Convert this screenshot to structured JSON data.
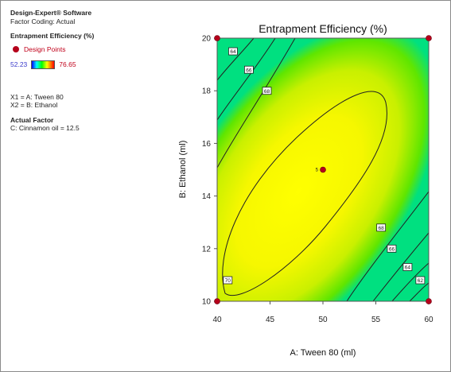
{
  "info": {
    "software": "Design-Expert® Software",
    "coding": "Factor Coding: Actual",
    "response_title": "Entrapment Efficiency (%)",
    "legend_label": "Design Points",
    "range_min": "52.23",
    "range_max": "76.65",
    "x1": "X1 = A: Tween 80",
    "x2": "X2 = B: Ethanol",
    "actual_factor_title": "Actual Factor",
    "actual_factor_value": "C: Cinnamon oil = 12.5"
  },
  "colors": {
    "low": "#00ff00",
    "mid": "#ffff00",
    "design_point": "#b5001b",
    "contour": "#222222"
  },
  "chart_data": {
    "type": "contour",
    "title": "Entrapment Efficiency (%)",
    "xlabel": "A: Tween 80 (ml)",
    "ylabel": "B: Ethanol (ml)",
    "xlim": [
      40,
      60
    ],
    "ylim": [
      10,
      20
    ],
    "x_ticks": [
      "40",
      "45",
      "50",
      "55",
      "60"
    ],
    "y_ticks": [
      "10",
      "12",
      "14",
      "16",
      "18",
      "20"
    ],
    "x_tick_values": [
      40,
      45,
      50,
      55,
      60
    ],
    "y_tick_values": [
      10,
      12,
      14,
      16,
      18,
      20
    ],
    "contour_labels": [
      {
        "text": "64",
        "x": 41.5,
        "y": 19.5
      },
      {
        "text": "66",
        "x": 43.0,
        "y": 18.8
      },
      {
        "text": "68",
        "x": 44.7,
        "y": 18.0
      },
      {
        "text": "70",
        "x": 41.0,
        "y": 10.8
      },
      {
        "text": "68",
        "x": 55.5,
        "y": 12.8
      },
      {
        "text": "66",
        "x": 56.5,
        "y": 12.0
      },
      {
        "text": "64",
        "x": 58.0,
        "y": 11.3
      },
      {
        "text": "62",
        "x": 59.2,
        "y": 10.8
      }
    ],
    "design_points": [
      {
        "x": 40,
        "y": 20,
        "label": ""
      },
      {
        "x": 60,
        "y": 20,
        "label": ""
      },
      {
        "x": 40,
        "y": 10,
        "label": ""
      },
      {
        "x": 60,
        "y": 10,
        "label": ""
      },
      {
        "x": 50,
        "y": 15,
        "label": "5"
      }
    ]
  }
}
